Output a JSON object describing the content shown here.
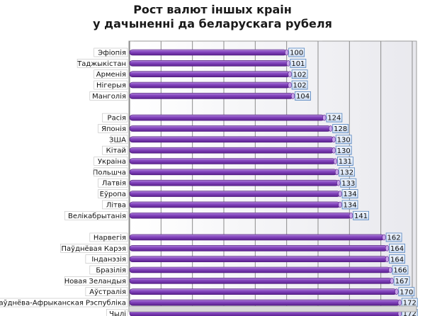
{
  "chart_data": {
    "type": "bar",
    "orientation": "horizontal",
    "title": "Рост валют іншых краін",
    "subtitle": "у дачыненні да беларускага рубеля",
    "xlim": [
      0,
      180
    ],
    "grid": true,
    "bar_color": "#7030a0",
    "label_box_color": "#dce6f4",
    "label_box_border": "#4f81bd",
    "groups": [
      {
        "categories": [
          "Эфіопія",
          "Таджыкістан",
          "Арменія",
          "Нігерыя",
          "Манголія"
        ],
        "values": [
          100,
          101,
          102,
          102,
          104
        ]
      },
      {
        "categories": [
          "Расія",
          "Японія",
          "ЗША",
          "Кітай",
          "Украіна",
          "Польшча",
          "Латвія",
          "Еўропа",
          "Літва",
          "Велікабрытанія"
        ],
        "values": [
          124,
          128,
          130,
          130,
          131,
          132,
          133,
          134,
          134,
          141
        ]
      },
      {
        "categories": [
          "Нарвегія",
          "Паўднёвая Карэя",
          "Інданэзія",
          "Бразілія",
          "Новая Зеландыя",
          "Аўстралія",
          "Паўднёва-Афрыканская Рэспубліка",
          "Чылі"
        ],
        "values": [
          162,
          164,
          164,
          166,
          167,
          170,
          172,
          172
        ]
      }
    ]
  }
}
